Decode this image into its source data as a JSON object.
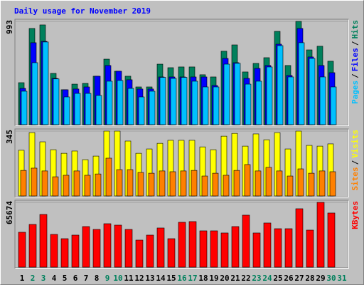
{
  "title": "Daily usage for November 2019",
  "legend_separator": "/",
  "categories": [
    "1",
    "2",
    "3",
    "4",
    "5",
    "6",
    "7",
    "8",
    "9",
    "10",
    "11",
    "12",
    "13",
    "14",
    "15",
    "16",
    "17",
    "18",
    "19",
    "20",
    "21",
    "22",
    "23",
    "24",
    "25",
    "26",
    "27",
    "28",
    "29",
    "30",
    "31"
  ],
  "category_colors": [
    "#000000",
    "#00805c",
    "#00805c",
    "#000000",
    "#000000",
    "#000000",
    "#000000",
    "#000000",
    "#00805c",
    "#00805c",
    "#000000",
    "#000000",
    "#000000",
    "#000000",
    "#000000",
    "#00805c",
    "#00805c",
    "#000000",
    "#000000",
    "#000000",
    "#000000",
    "#000000",
    "#00805c",
    "#00805c",
    "#000000",
    "#000000",
    "#000000",
    "#000000",
    "#000000",
    "#00805c",
    "#00805c"
  ],
  "chart_data": [
    {
      "type": "bar",
      "ylim": [
        0,
        993
      ],
      "yticks": [
        993
      ],
      "series": [
        {
          "name": "Hits",
          "color": "#00805c",
          "values": [
            404,
            925,
            959,
            493,
            336,
            390,
            397,
            466,
            630,
            514,
            466,
            363,
            363,
            582,
            548,
            555,
            555,
            480,
            459,
            706,
            767,
            507,
            589,
            644,
            897,
            569,
            993,
            719,
            754,
            610,
            null
          ]
        },
        {
          "name": "Files",
          "color": "#0000ff",
          "values": [
            349,
            788,
            801,
            445,
            336,
            343,
            363,
            466,
            569,
            514,
            432,
            343,
            343,
            459,
            459,
            459,
            459,
            459,
            377,
            637,
            596,
            445,
            541,
            569,
            774,
            473,
            925,
            651,
            569,
            500,
            null
          ]
        },
        {
          "name": "Pages",
          "color": "#00c0ff",
          "values": [
            322,
            596,
            795,
            440,
            267,
            301,
            301,
            281,
            418,
            425,
            349,
            267,
            322,
            455,
            445,
            455,
            418,
            363,
            363,
            582,
            590,
            390,
            418,
            555,
            760,
            459,
            788,
            637,
            459,
            363,
            null
          ]
        }
      ]
    },
    {
      "type": "bar",
      "ylim": [
        0,
        345
      ],
      "yticks": [
        345
      ],
      "series": [
        {
          "name": "Visits",
          "color": "#ffff00",
          "values": [
            243,
            337,
            288,
            246,
            227,
            239,
            193,
            212,
            345,
            345,
            292,
            227,
            250,
            280,
            296,
            296,
            296,
            261,
            246,
            318,
            333,
            265,
            330,
            299,
            337,
            250,
            345,
            269,
            265,
            277,
            null
          ]
        },
        {
          "name": "Sites",
          "color": "#ff8000",
          "values": [
            136,
            148,
            133,
            102,
            110,
            133,
            110,
            117,
            201,
            140,
            140,
            125,
            121,
            133,
            129,
            133,
            136,
            106,
            121,
            110,
            136,
            167,
            133,
            152,
            133,
            106,
            144,
            121,
            133,
            129,
            null
          ]
        }
      ]
    },
    {
      "type": "bar",
      "ylim": [
        0,
        65674
      ],
      "yticks": [
        65674
      ],
      "series": [
        {
          "name": "KBytes",
          "color": "#ff0000",
          "values": [
            35378,
            43320,
            53428,
            33212,
            28880,
            32490,
            41154,
            38266,
            44042,
            42598,
            38266,
            27436,
            32490,
            39710,
            28880,
            45486,
            46208,
            36822,
            36822,
            34656,
            41154,
            52706,
            34656,
            44764,
            38988,
            38988,
            59204,
            37544,
            65674,
            54872,
            null
          ]
        }
      ]
    }
  ]
}
